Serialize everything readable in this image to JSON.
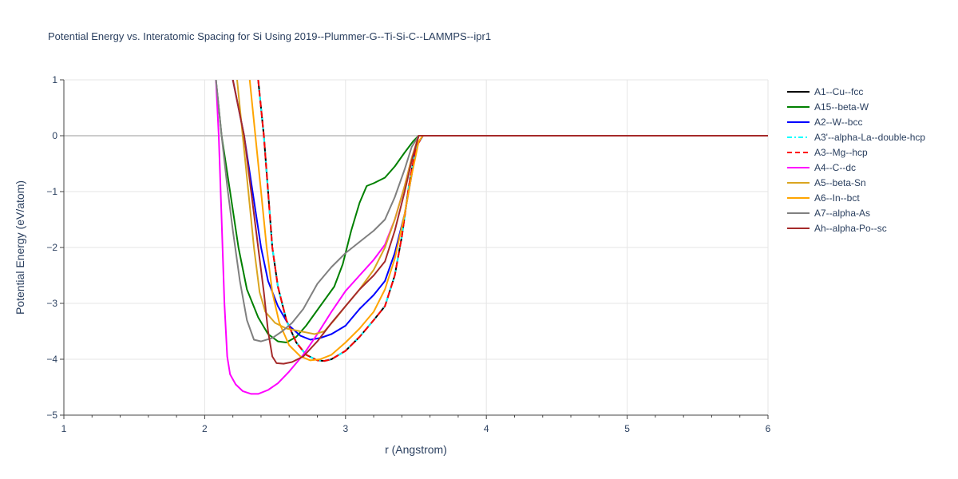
{
  "chart_data": {
    "type": "line",
    "title": "Potential Energy vs. Interatomic Spacing for Si Using 2019--Plummer-G--Ti-Si-C--LAMMPS--ipr1",
    "xlabel": "r (Angstrom)",
    "ylabel": "Potential Energy (eV/atom)",
    "xlim": [
      1,
      6
    ],
    "ylim": [
      -5,
      1
    ],
    "x_ticks": [
      "1",
      "2",
      "3",
      "4",
      "5",
      "6"
    ],
    "y_ticks": [
      "1",
      "0",
      "−1",
      "−2",
      "−3",
      "−4",
      "−5"
    ],
    "grid": true,
    "legend_position": "top-right",
    "series": [
      {
        "name": "A1--Cu--fcc",
        "color": "#000000",
        "dash": "solid",
        "points": [
          [
            2.38,
            1.0
          ],
          [
            2.42,
            0.0
          ],
          [
            2.45,
            -1.0
          ],
          [
            2.48,
            -2.0
          ],
          [
            2.52,
            -2.7
          ],
          [
            2.58,
            -3.3
          ],
          [
            2.65,
            -3.7
          ],
          [
            2.72,
            -3.92
          ],
          [
            2.8,
            -4.02
          ],
          [
            2.85,
            -4.03
          ],
          [
            2.9,
            -4.0
          ],
          [
            3.0,
            -3.85
          ],
          [
            3.1,
            -3.6
          ],
          [
            3.2,
            -3.3
          ],
          [
            3.28,
            -3.05
          ],
          [
            3.35,
            -2.5
          ],
          [
            3.4,
            -1.8
          ],
          [
            3.45,
            -0.9
          ],
          [
            3.5,
            -0.2
          ],
          [
            3.55,
            0.0
          ],
          [
            6.0,
            0.0
          ]
        ]
      },
      {
        "name": "A15--beta-W",
        "color": "#008000",
        "dash": "solid",
        "points": [
          [
            2.08,
            1.0
          ],
          [
            2.12,
            0.0
          ],
          [
            2.18,
            -1.0
          ],
          [
            2.24,
            -2.0
          ],
          [
            2.3,
            -2.75
          ],
          [
            2.38,
            -3.25
          ],
          [
            2.45,
            -3.55
          ],
          [
            2.52,
            -3.68
          ],
          [
            2.58,
            -3.7
          ],
          [
            2.65,
            -3.6
          ],
          [
            2.72,
            -3.4
          ],
          [
            2.82,
            -3.05
          ],
          [
            2.92,
            -2.7
          ],
          [
            2.98,
            -2.3
          ],
          [
            3.04,
            -1.7
          ],
          [
            3.1,
            -1.2
          ],
          [
            3.15,
            -0.9
          ],
          [
            3.2,
            -0.85
          ],
          [
            3.28,
            -0.75
          ],
          [
            3.35,
            -0.55
          ],
          [
            3.42,
            -0.3
          ],
          [
            3.48,
            -0.1
          ],
          [
            3.52,
            0.0
          ],
          [
            6.0,
            0.0
          ]
        ]
      },
      {
        "name": "A2--W--bcc",
        "color": "#0000ff",
        "dash": "solid",
        "points": [
          [
            2.2,
            1.0
          ],
          [
            2.28,
            0.0
          ],
          [
            2.34,
            -1.0
          ],
          [
            2.4,
            -2.0
          ],
          [
            2.45,
            -2.6
          ],
          [
            2.52,
            -3.05
          ],
          [
            2.6,
            -3.4
          ],
          [
            2.68,
            -3.58
          ],
          [
            2.75,
            -3.65
          ],
          [
            2.82,
            -3.62
          ],
          [
            2.9,
            -3.55
          ],
          [
            3.0,
            -3.4
          ],
          [
            3.1,
            -3.1
          ],
          [
            3.2,
            -2.85
          ],
          [
            3.28,
            -2.6
          ],
          [
            3.35,
            -2.1
          ],
          [
            3.42,
            -1.4
          ],
          [
            3.47,
            -0.7
          ],
          [
            3.5,
            -0.2
          ],
          [
            3.55,
            0.0
          ],
          [
            6.0,
            0.0
          ]
        ]
      },
      {
        "name": "A3'--alpha-La--double-hcp",
        "color": "#00ffff",
        "dash": "dashdot",
        "points": [
          [
            2.38,
            1.0
          ],
          [
            2.42,
            0.0
          ],
          [
            2.45,
            -1.0
          ],
          [
            2.48,
            -2.0
          ],
          [
            2.52,
            -2.7
          ],
          [
            2.58,
            -3.3
          ],
          [
            2.65,
            -3.7
          ],
          [
            2.72,
            -3.92
          ],
          [
            2.8,
            -4.02
          ],
          [
            2.85,
            -4.03
          ],
          [
            2.9,
            -4.0
          ],
          [
            3.0,
            -3.85
          ],
          [
            3.1,
            -3.6
          ],
          [
            3.2,
            -3.3
          ],
          [
            3.28,
            -3.05
          ],
          [
            3.35,
            -2.5
          ],
          [
            3.4,
            -1.8
          ],
          [
            3.45,
            -0.9
          ],
          [
            3.5,
            -0.2
          ],
          [
            3.55,
            0.0
          ],
          [
            6.0,
            0.0
          ]
        ]
      },
      {
        "name": "A3--Mg--hcp",
        "color": "#ff0000",
        "dash": "dash",
        "points": [
          [
            2.38,
            1.0
          ],
          [
            2.42,
            0.0
          ],
          [
            2.45,
            -1.0
          ],
          [
            2.48,
            -2.0
          ],
          [
            2.52,
            -2.7
          ],
          [
            2.58,
            -3.3
          ],
          [
            2.65,
            -3.7
          ],
          [
            2.72,
            -3.92
          ],
          [
            2.8,
            -4.02
          ],
          [
            2.85,
            -4.03
          ],
          [
            2.9,
            -4.0
          ],
          [
            3.0,
            -3.85
          ],
          [
            3.1,
            -3.6
          ],
          [
            3.2,
            -3.3
          ],
          [
            3.28,
            -3.05
          ],
          [
            3.35,
            -2.5
          ],
          [
            3.4,
            -1.8
          ],
          [
            3.45,
            -0.9
          ],
          [
            3.5,
            -0.2
          ],
          [
            3.55,
            0.0
          ],
          [
            6.0,
            0.0
          ]
        ]
      },
      {
        "name": "A4--C--dc",
        "color": "#ff00ff",
        "dash": "solid",
        "points": [
          [
            2.08,
            1.0
          ],
          [
            2.1,
            0.0
          ],
          [
            2.12,
            -1.5
          ],
          [
            2.14,
            -3.0
          ],
          [
            2.16,
            -3.95
          ],
          [
            2.18,
            -4.27
          ],
          [
            2.22,
            -4.45
          ],
          [
            2.27,
            -4.57
          ],
          [
            2.33,
            -4.62
          ],
          [
            2.38,
            -4.62
          ],
          [
            2.45,
            -4.55
          ],
          [
            2.52,
            -4.43
          ],
          [
            2.6,
            -4.22
          ],
          [
            2.7,
            -3.92
          ],
          [
            2.8,
            -3.55
          ],
          [
            2.9,
            -3.15
          ],
          [
            3.0,
            -2.78
          ],
          [
            3.1,
            -2.5
          ],
          [
            3.2,
            -2.22
          ],
          [
            3.28,
            -1.95
          ],
          [
            3.35,
            -1.5
          ],
          [
            3.42,
            -0.9
          ],
          [
            3.47,
            -0.4
          ],
          [
            3.52,
            0.0
          ],
          [
            6.0,
            0.0
          ]
        ]
      },
      {
        "name": "A5--beta-Sn",
        "color": "#daa520",
        "dash": "solid",
        "points": [
          [
            2.23,
            1.0
          ],
          [
            2.27,
            0.0
          ],
          [
            2.31,
            -1.0
          ],
          [
            2.35,
            -2.0
          ],
          [
            2.39,
            -2.8
          ],
          [
            2.43,
            -3.15
          ],
          [
            2.5,
            -3.35
          ],
          [
            2.58,
            -3.45
          ],
          [
            2.68,
            -3.5
          ],
          [
            2.78,
            -3.55
          ],
          [
            2.85,
            -3.5
          ],
          [
            2.92,
            -3.3
          ],
          [
            3.0,
            -3.05
          ],
          [
            3.1,
            -2.75
          ],
          [
            3.2,
            -2.4
          ],
          [
            3.28,
            -2.0
          ],
          [
            3.35,
            -1.5
          ],
          [
            3.42,
            -0.9
          ],
          [
            3.47,
            -0.4
          ],
          [
            3.52,
            0.0
          ],
          [
            6.0,
            0.0
          ]
        ]
      },
      {
        "name": "A6--In--bct",
        "color": "#ffa500",
        "dash": "solid",
        "points": [
          [
            2.32,
            1.0
          ],
          [
            2.36,
            0.0
          ],
          [
            2.4,
            -1.0
          ],
          [
            2.44,
            -2.0
          ],
          [
            2.48,
            -2.8
          ],
          [
            2.53,
            -3.35
          ],
          [
            2.6,
            -3.75
          ],
          [
            2.68,
            -3.95
          ],
          [
            2.75,
            -4.02
          ],
          [
            2.82,
            -4.0
          ],
          [
            2.9,
            -3.92
          ],
          [
            3.0,
            -3.7
          ],
          [
            3.1,
            -3.45
          ],
          [
            3.2,
            -3.15
          ],
          [
            3.28,
            -2.75
          ],
          [
            3.35,
            -2.2
          ],
          [
            3.42,
            -1.4
          ],
          [
            3.47,
            -0.7
          ],
          [
            3.52,
            -0.1
          ],
          [
            3.55,
            0.0
          ],
          [
            6.0,
            0.0
          ]
        ]
      },
      {
        "name": "A7--alpha-As",
        "color": "#808080",
        "dash": "solid",
        "points": [
          [
            2.08,
            1.0
          ],
          [
            2.12,
            0.0
          ],
          [
            2.16,
            -0.9
          ],
          [
            2.2,
            -1.7
          ],
          [
            2.25,
            -2.6
          ],
          [
            2.3,
            -3.3
          ],
          [
            2.35,
            -3.65
          ],
          [
            2.4,
            -3.68
          ],
          [
            2.48,
            -3.62
          ],
          [
            2.55,
            -3.5
          ],
          [
            2.62,
            -3.35
          ],
          [
            2.7,
            -3.1
          ],
          [
            2.8,
            -2.65
          ],
          [
            2.9,
            -2.35
          ],
          [
            3.0,
            -2.1
          ],
          [
            3.1,
            -1.9
          ],
          [
            3.2,
            -1.7
          ],
          [
            3.28,
            -1.5
          ],
          [
            3.35,
            -1.1
          ],
          [
            3.42,
            -0.6
          ],
          [
            3.47,
            -0.2
          ],
          [
            3.52,
            0.0
          ],
          [
            6.0,
            0.0
          ]
        ]
      },
      {
        "name": "Ah--alpha-Po--sc",
        "color": "#a52a2a",
        "dash": "solid",
        "points": [
          [
            2.2,
            1.0
          ],
          [
            2.28,
            0.0
          ],
          [
            2.33,
            -1.0
          ],
          [
            2.38,
            -2.0
          ],
          [
            2.42,
            -2.8
          ],
          [
            2.45,
            -3.5
          ],
          [
            2.48,
            -3.95
          ],
          [
            2.51,
            -4.07
          ],
          [
            2.56,
            -4.08
          ],
          [
            2.62,
            -4.05
          ],
          [
            2.7,
            -3.95
          ],
          [
            2.8,
            -3.68
          ],
          [
            2.9,
            -3.35
          ],
          [
            3.0,
            -3.05
          ],
          [
            3.1,
            -2.75
          ],
          [
            3.2,
            -2.5
          ],
          [
            3.28,
            -2.25
          ],
          [
            3.35,
            -1.7
          ],
          [
            3.42,
            -1.0
          ],
          [
            3.47,
            -0.45
          ],
          [
            3.52,
            0.0
          ],
          [
            6.0,
            0.0
          ]
        ]
      }
    ]
  }
}
